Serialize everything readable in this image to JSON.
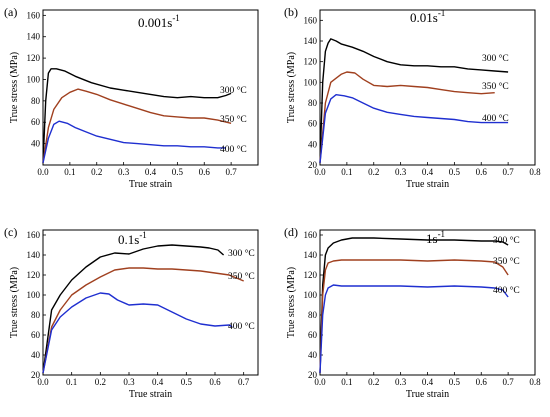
{
  "chart_data": [
    {
      "type": "line",
      "panel_label": "(a)",
      "rate_base": "0.001s",
      "rate_exp": "-1",
      "xlabel": "True strain",
      "ylabel": "True stress (MPa)",
      "xlim": [
        0.0,
        0.8
      ],
      "ylim": [
        20,
        165
      ],
      "xticks": [
        0.0,
        0.1,
        0.2,
        0.3,
        0.4,
        0.5,
        0.6,
        0.7,
        0.8
      ],
      "xtick_labels": [
        "0.0",
        "0.1",
        "0.2",
        "0.3",
        "0.4",
        "0.5",
        "0.6",
        "0.7",
        ""
      ],
      "yticks": [
        40,
        60,
        80,
        100,
        120,
        140,
        160
      ],
      "ytick_labels": [
        "40",
        "60",
        "80",
        "100",
        "120",
        "140",
        "160"
      ],
      "series": [
        {
          "name": "300 °C",
          "color": "#000000",
          "x": [
            0.0,
            0.01,
            0.02,
            0.03,
            0.05,
            0.08,
            0.12,
            0.18,
            0.25,
            0.3,
            0.35,
            0.4,
            0.45,
            0.5,
            0.55,
            0.6,
            0.65,
            0.68,
            0.7
          ],
          "y": [
            22,
            80,
            106,
            110,
            110,
            108,
            103,
            97,
            92,
            90,
            88,
            86,
            84,
            83,
            84,
            83,
            83,
            85,
            87
          ]
        },
        {
          "name": "350 °C",
          "color": "#a0401f",
          "x": [
            0.0,
            0.02,
            0.04,
            0.07,
            0.1,
            0.13,
            0.16,
            0.2,
            0.25,
            0.3,
            0.35,
            0.4,
            0.45,
            0.5,
            0.55,
            0.6,
            0.65,
            0.7
          ],
          "y": [
            22,
            55,
            72,
            83,
            88,
            91,
            89,
            86,
            81,
            77,
            73,
            69,
            66,
            65,
            64,
            64,
            62,
            59
          ]
        },
        {
          "name": "400 °C",
          "color": "#1f2fd0",
          "x": [
            0.0,
            0.02,
            0.04,
            0.06,
            0.09,
            0.12,
            0.16,
            0.2,
            0.25,
            0.3,
            0.35,
            0.4,
            0.45,
            0.5,
            0.55,
            0.6,
            0.65,
            0.68
          ],
          "y": [
            22,
            45,
            58,
            61,
            59,
            55,
            51,
            47,
            44,
            41,
            40,
            39,
            38,
            38,
            37,
            37,
            36,
            36
          ]
        }
      ]
    },
    {
      "type": "line",
      "panel_label": "(b)",
      "rate_base": "0.01s",
      "rate_exp": "-1",
      "xlabel": "True strain",
      "ylabel": "True stress (MPa)",
      "xlim": [
        0.0,
        0.8
      ],
      "ylim": [
        20,
        170
      ],
      "xticks": [
        0.0,
        0.1,
        0.2,
        0.3,
        0.4,
        0.5,
        0.6,
        0.7,
        0.8
      ],
      "xtick_labels": [
        "0.0",
        "0.1",
        "0.2",
        "0.3",
        "0.4",
        "0.5",
        "0.6",
        "0.7",
        "0.8"
      ],
      "yticks": [
        20,
        40,
        60,
        80,
        100,
        120,
        140,
        160
      ],
      "ytick_labels": [
        "20",
        "40",
        "60",
        "80",
        "100",
        "120",
        "140",
        "160"
      ],
      "series": [
        {
          "name": "300 °C",
          "color": "#000000",
          "x": [
            0.0,
            0.01,
            0.02,
            0.03,
            0.04,
            0.06,
            0.08,
            0.12,
            0.16,
            0.2,
            0.25,
            0.3,
            0.35,
            0.4,
            0.45,
            0.5,
            0.55,
            0.6,
            0.65,
            0.7
          ],
          "y": [
            22,
            100,
            130,
            138,
            142,
            140,
            137,
            134,
            130,
            125,
            120,
            117,
            116,
            116,
            115,
            115,
            113,
            112,
            111,
            110
          ]
        },
        {
          "name": "350 °C",
          "color": "#a0401f",
          "x": [
            0.0,
            0.02,
            0.04,
            0.06,
            0.08,
            0.1,
            0.13,
            0.16,
            0.2,
            0.25,
            0.3,
            0.35,
            0.4,
            0.45,
            0.5,
            0.55,
            0.6,
            0.65
          ],
          "y": [
            22,
            80,
            100,
            104,
            108,
            110,
            109,
            103,
            97,
            96,
            97,
            96,
            95,
            93,
            91,
            90,
            89,
            90
          ]
        },
        {
          "name": "400 °C",
          "color": "#1f2fd0",
          "x": [
            0.0,
            0.02,
            0.04,
            0.06,
            0.09,
            0.12,
            0.16,
            0.2,
            0.25,
            0.3,
            0.35,
            0.4,
            0.45,
            0.5,
            0.55,
            0.6,
            0.65,
            0.7
          ],
          "y": [
            22,
            70,
            84,
            88,
            87,
            85,
            80,
            75,
            71,
            69,
            67,
            66,
            65,
            64,
            62,
            61,
            61,
            61
          ]
        }
      ]
    },
    {
      "type": "line",
      "panel_label": "(c)",
      "rate_base": "0.1s",
      "rate_exp": "-1",
      "xlabel": "True strain",
      "ylabel": "True stress (MPa)",
      "xlim": [
        0.0,
        0.75
      ],
      "ylim": [
        20,
        165
      ],
      "xticks": [
        0.0,
        0.1,
        0.2,
        0.3,
        0.4,
        0.5,
        0.6,
        0.7
      ],
      "xtick_labels": [
        "0.0",
        "0.1",
        "0.2",
        "0.3",
        "0.4",
        "0.5",
        "0.6",
        "0.7"
      ],
      "yticks": [
        20,
        40,
        60,
        80,
        100,
        120,
        140,
        160
      ],
      "ytick_labels": [
        "20",
        "40",
        "60",
        "80",
        "100",
        "120",
        "140",
        "160"
      ],
      "series": [
        {
          "name": "300 °C",
          "color": "#000000",
          "x": [
            0.0,
            0.03,
            0.06,
            0.1,
            0.15,
            0.2,
            0.25,
            0.3,
            0.35,
            0.4,
            0.45,
            0.5,
            0.55,
            0.58,
            0.61,
            0.63
          ],
          "y": [
            22,
            85,
            100,
            115,
            128,
            138,
            142,
            141,
            146,
            149,
            150,
            149,
            148,
            147,
            145,
            140
          ]
        },
        {
          "name": "350 °C",
          "color": "#a0401f",
          "x": [
            0.0,
            0.03,
            0.06,
            0.1,
            0.15,
            0.2,
            0.25,
            0.3,
            0.35,
            0.4,
            0.45,
            0.5,
            0.55,
            0.6,
            0.65,
            0.7
          ],
          "y": [
            22,
            68,
            85,
            100,
            110,
            118,
            125,
            127,
            127,
            126,
            126,
            125,
            124,
            122,
            120,
            114
          ]
        },
        {
          "name": "400 °C",
          "color": "#1f2fd0",
          "x": [
            0.0,
            0.03,
            0.06,
            0.1,
            0.15,
            0.2,
            0.23,
            0.26,
            0.3,
            0.35,
            0.4,
            0.45,
            0.5,
            0.55,
            0.6,
            0.65,
            0.66
          ],
          "y": [
            22,
            65,
            78,
            88,
            97,
            102,
            101,
            95,
            90,
            91,
            90,
            83,
            76,
            71,
            69,
            70,
            68
          ]
        }
      ]
    },
    {
      "type": "line",
      "panel_label": "(d)",
      "rate_base": "1s",
      "rate_exp": "-1",
      "xlabel": "True strain",
      "ylabel": "True stress (MPa)",
      "xlim": [
        0.0,
        0.8
      ],
      "ylim": [
        20,
        165
      ],
      "xticks": [
        0.0,
        0.1,
        0.2,
        0.3,
        0.4,
        0.5,
        0.6,
        0.7,
        0.8
      ],
      "xtick_labels": [
        "0.0",
        "0.1",
        "0.2",
        "0.3",
        "0.4",
        "0.5",
        "0.6",
        "0.7",
        "0.8"
      ],
      "yticks": [
        20,
        40,
        60,
        80,
        100,
        120,
        140,
        160
      ],
      "ytick_labels": [
        "20",
        "40",
        "60",
        "80",
        "100",
        "120",
        "140",
        "160"
      ],
      "series": [
        {
          "name": "300 °C",
          "color": "#000000",
          "x": [
            0.0,
            0.01,
            0.02,
            0.03,
            0.05,
            0.08,
            0.12,
            0.2,
            0.3,
            0.4,
            0.5,
            0.6,
            0.65,
            0.68,
            0.7
          ],
          "y": [
            22,
            110,
            140,
            147,
            152,
            155,
            157,
            157,
            156,
            155,
            155,
            154,
            154,
            153,
            150
          ]
        },
        {
          "name": "350 °C",
          "color": "#a0401f",
          "x": [
            0.0,
            0.01,
            0.02,
            0.03,
            0.05,
            0.08,
            0.12,
            0.2,
            0.3,
            0.4,
            0.5,
            0.6,
            0.65,
            0.68,
            0.7
          ],
          "y": [
            22,
            100,
            125,
            132,
            134,
            135,
            135,
            135,
            135,
            134,
            135,
            134,
            133,
            128,
            120
          ]
        },
        {
          "name": "400 °C",
          "color": "#1f2fd0",
          "x": [
            0.0,
            0.01,
            0.02,
            0.03,
            0.05,
            0.08,
            0.12,
            0.2,
            0.3,
            0.4,
            0.5,
            0.6,
            0.65,
            0.68,
            0.7
          ],
          "y": [
            22,
            80,
            100,
            107,
            110,
            109,
            109,
            109,
            109,
            108,
            109,
            108,
            107,
            105,
            98
          ]
        }
      ]
    }
  ]
}
